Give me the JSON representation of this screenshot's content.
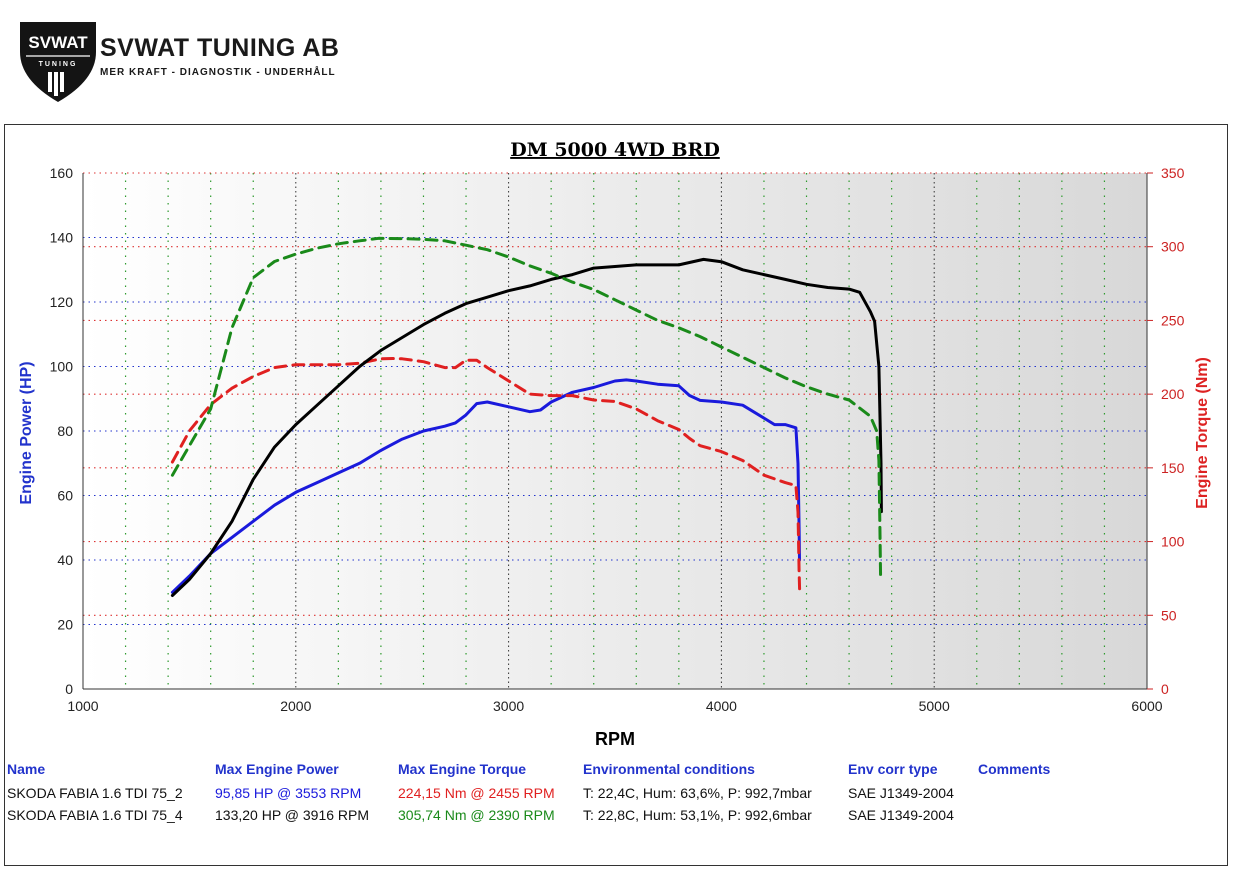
{
  "brand": {
    "logo_text": "SVWAT",
    "logo_subtext": "TUNING",
    "name": "SVWAT TUNING AB",
    "tagline": "MER KRAFT - DIAGNOSTIK - UNDERHÅLL"
  },
  "chart_data": {
    "type": "line",
    "title": "DM 5000 4WD BRD",
    "xlabel": "RPM",
    "ylabel_left": "Engine Power (HP)",
    "ylabel_right": "Engine Torque (Nm)",
    "xlim": [
      1000,
      6000
    ],
    "ylim_left": [
      0,
      160
    ],
    "ylim_right": [
      0,
      350
    ],
    "x_ticks": [
      1000,
      2000,
      3000,
      4000,
      5000,
      6000
    ],
    "y_ticks_left": [
      0,
      20,
      40,
      60,
      80,
      100,
      120,
      140,
      160
    ],
    "y_ticks_right": [
      0,
      50,
      100,
      150,
      200,
      250,
      300,
      350
    ],
    "grid": true,
    "colors": {
      "power_1": "#1a1adc",
      "torque_1": "#e02020",
      "power_2": "#000000",
      "torque_2": "#1a8a1a",
      "left_axis_label": "#2233cc",
      "right_axis_label": "#dd2222",
      "right_tick": "#cc2222"
    },
    "series": [
      {
        "axis": "left",
        "style": "solid",
        "color_key": "power_1",
        "points": [
          [
            1420,
            30
          ],
          [
            1500,
            35
          ],
          [
            1600,
            42
          ],
          [
            1700,
            47
          ],
          [
            1800,
            52
          ],
          [
            1900,
            57
          ],
          [
            2000,
            61
          ],
          [
            2100,
            64
          ],
          [
            2200,
            67
          ],
          [
            2300,
            70
          ],
          [
            2400,
            74
          ],
          [
            2500,
            77.5
          ],
          [
            2600,
            80
          ],
          [
            2700,
            81.5
          ],
          [
            2750,
            82.5
          ],
          [
            2800,
            85
          ],
          [
            2850,
            88.5
          ],
          [
            2900,
            89
          ],
          [
            3000,
            87.5
          ],
          [
            3100,
            86
          ],
          [
            3150,
            86.5
          ],
          [
            3200,
            89
          ],
          [
            3300,
            92
          ],
          [
            3400,
            93.5
          ],
          [
            3500,
            95.5
          ],
          [
            3553,
            95.85
          ],
          [
            3600,
            95.5
          ],
          [
            3700,
            94.5
          ],
          [
            3800,
            94
          ],
          [
            3850,
            91
          ],
          [
            3900,
            89.5
          ],
          [
            4000,
            89
          ],
          [
            4100,
            88
          ],
          [
            4200,
            84
          ],
          [
            4250,
            82
          ],
          [
            4300,
            82
          ],
          [
            4350,
            81
          ],
          [
            4360,
            70
          ],
          [
            4365,
            50
          ],
          [
            4367,
            40
          ]
        ]
      },
      {
        "axis": "right",
        "style": "dashed",
        "color_key": "torque_1",
        "points": [
          [
            1420,
            154
          ],
          [
            1500,
            175
          ],
          [
            1600,
            193
          ],
          [
            1700,
            204
          ],
          [
            1800,
            212
          ],
          [
            1900,
            218
          ],
          [
            2000,
            220
          ],
          [
            2100,
            220
          ],
          [
            2200,
            220
          ],
          [
            2300,
            221
          ],
          [
            2400,
            224
          ],
          [
            2455,
            224.15
          ],
          [
            2500,
            224
          ],
          [
            2600,
            222
          ],
          [
            2700,
            218
          ],
          [
            2750,
            218
          ],
          [
            2800,
            223
          ],
          [
            2850,
            223
          ],
          [
            2900,
            218
          ],
          [
            3000,
            209
          ],
          [
            3100,
            200
          ],
          [
            3200,
            199
          ],
          [
            3300,
            199
          ],
          [
            3400,
            196
          ],
          [
            3500,
            195
          ],
          [
            3600,
            190
          ],
          [
            3700,
            182
          ],
          [
            3800,
            176
          ],
          [
            3850,
            170
          ],
          [
            3900,
            165
          ],
          [
            4000,
            161
          ],
          [
            4100,
            155
          ],
          [
            4200,
            145
          ],
          [
            4300,
            140
          ],
          [
            4350,
            138
          ],
          [
            4360,
            120
          ],
          [
            4365,
            80
          ],
          [
            4368,
            65
          ]
        ]
      },
      {
        "axis": "left",
        "style": "solid",
        "color_key": "power_2",
        "points": [
          [
            1420,
            29
          ],
          [
            1500,
            34
          ],
          [
            1600,
            42
          ],
          [
            1700,
            52
          ],
          [
            1800,
            65
          ],
          [
            1900,
            75
          ],
          [
            2000,
            82
          ],
          [
            2100,
            88
          ],
          [
            2200,
            94
          ],
          [
            2300,
            100
          ],
          [
            2400,
            105
          ],
          [
            2500,
            109
          ],
          [
            2600,
            113
          ],
          [
            2700,
            116.5
          ],
          [
            2800,
            119.5
          ],
          [
            2900,
            121.5
          ],
          [
            3000,
            123.5
          ],
          [
            3100,
            125
          ],
          [
            3200,
            127
          ],
          [
            3300,
            128.5
          ],
          [
            3400,
            130.5
          ],
          [
            3500,
            131
          ],
          [
            3600,
            131.5
          ],
          [
            3700,
            131.5
          ],
          [
            3800,
            131.5
          ],
          [
            3900,
            133
          ],
          [
            3916,
            133.2
          ],
          [
            4000,
            132.5
          ],
          [
            4100,
            130
          ],
          [
            4200,
            128.5
          ],
          [
            4300,
            127
          ],
          [
            4400,
            125.5
          ],
          [
            4500,
            124.5
          ],
          [
            4600,
            124
          ],
          [
            4650,
            123
          ],
          [
            4700,
            117
          ],
          [
            4720,
            114
          ],
          [
            4740,
            100
          ],
          [
            4750,
            70
          ],
          [
            4752,
            55
          ]
        ]
      },
      {
        "axis": "right",
        "style": "dashed",
        "color_key": "torque_2",
        "points": [
          [
            1420,
            145
          ],
          [
            1500,
            165
          ],
          [
            1600,
            190
          ],
          [
            1700,
            245
          ],
          [
            1800,
            279
          ],
          [
            1900,
            290
          ],
          [
            2000,
            295
          ],
          [
            2100,
            299
          ],
          [
            2200,
            302
          ],
          [
            2300,
            304
          ],
          [
            2390,
            305.74
          ],
          [
            2500,
            305.5
          ],
          [
            2600,
            305
          ],
          [
            2700,
            304
          ],
          [
            2800,
            301
          ],
          [
            2900,
            298
          ],
          [
            3000,
            293
          ],
          [
            3100,
            287
          ],
          [
            3200,
            282
          ],
          [
            3300,
            276
          ],
          [
            3400,
            271
          ],
          [
            3500,
            264
          ],
          [
            3600,
            257
          ],
          [
            3700,
            250
          ],
          [
            3800,
            245
          ],
          [
            3900,
            239
          ],
          [
            4000,
            232
          ],
          [
            4100,
            225
          ],
          [
            4200,
            218
          ],
          [
            4300,
            211
          ],
          [
            4400,
            205
          ],
          [
            4500,
            200
          ],
          [
            4600,
            196
          ],
          [
            4700,
            185
          ],
          [
            4730,
            175
          ],
          [
            4740,
            155
          ],
          [
            4745,
            110
          ],
          [
            4748,
            75
          ]
        ]
      }
    ]
  },
  "table": {
    "headers": {
      "name": "Name",
      "power": "Max Engine Power",
      "torque": "Max Engine Torque",
      "env": "Environmental conditions",
      "corr": "Env corr type",
      "comments": "Comments"
    },
    "rows": [
      {
        "name": "SKODA FABIA 1.6 TDI 75_2",
        "power": "95,85 HP @ 3553 RPM",
        "torque": "224,15 Nm @ 2455 RPM",
        "env": "T: 22,4C, Hum: 63,6%, P: 992,7mbar",
        "corr": "SAE J1349-2004",
        "comments": "",
        "power_color": "#1a1adc",
        "torque_color": "#e02020"
      },
      {
        "name": "SKODA FABIA 1.6 TDI 75_4",
        "power": "133,20 HP @ 3916 RPM",
        "torque": "305,74 Nm @ 2390 RPM",
        "env": "T: 22,8C, Hum: 53,1%, P: 992,6mbar",
        "corr": "SAE J1349-2004",
        "comments": "",
        "power_color": "#111111",
        "torque_color": "#1a8a1a"
      }
    ]
  }
}
